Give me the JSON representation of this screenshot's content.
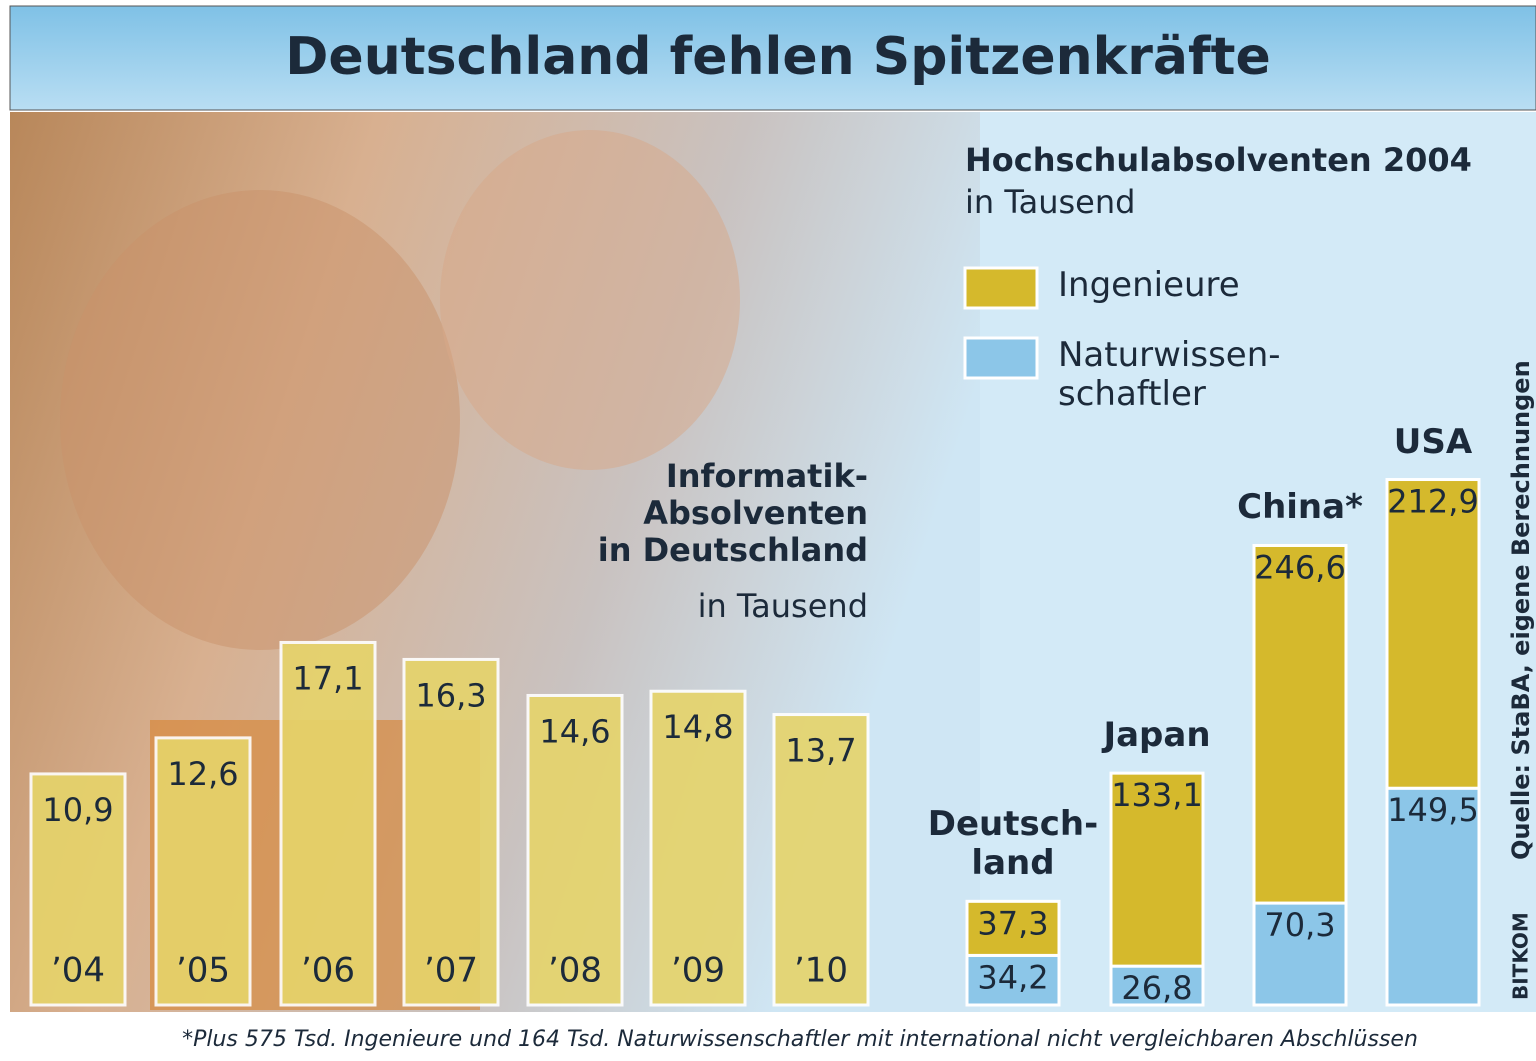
{
  "title": "Deutschland fehlen Spitzenkräfte",
  "footnote": "*Plus 575 Tsd. Ingenieure und 164 Tsd. Naturwissenschaftler mit international nicht vergleichbaren Abschlüssen",
  "source": "Quelle: StaBA, eigene Berechnungen",
  "brand": "BITKOM",
  "chart_data": [
    {
      "type": "bar",
      "title": "Informatik-\nAbsolventen\nin Deutschland",
      "subtitle": "in Tausend",
      "categories": [
        "’04",
        "’05",
        "’06",
        "’07",
        "’08",
        "’09",
        "’10"
      ],
      "values": [
        10.9,
        12.6,
        17.1,
        16.3,
        14.6,
        14.8,
        13.7
      ],
      "value_labels": [
        "10,9",
        "12,6",
        "17,1",
        "16,3",
        "14,6",
        "14,8",
        "13,7"
      ],
      "color": "#e6d46a"
    },
    {
      "type": "stacked_bar",
      "title": "Hochschulabsolventen 2004",
      "subtitle": "in Tausend",
      "categories": [
        "Deutsch-\nland",
        "Japan",
        "China*",
        "USA"
      ],
      "series": [
        {
          "name": "Naturwissen-\nschaftler",
          "color": "#8cc6e8",
          "values": [
            34.2,
            26.8,
            70.3,
            149.5
          ],
          "value_labels": [
            "34,2",
            "26,8",
            "70,3",
            "149,5"
          ]
        },
        {
          "name": "Ingenieure",
          "color": "#d5b92c",
          "values": [
            37.3,
            133.1,
            246.6,
            212.9
          ],
          "value_labels": [
            "37,3",
            "133,1",
            "246,6",
            "212,9"
          ]
        }
      ]
    }
  ]
}
